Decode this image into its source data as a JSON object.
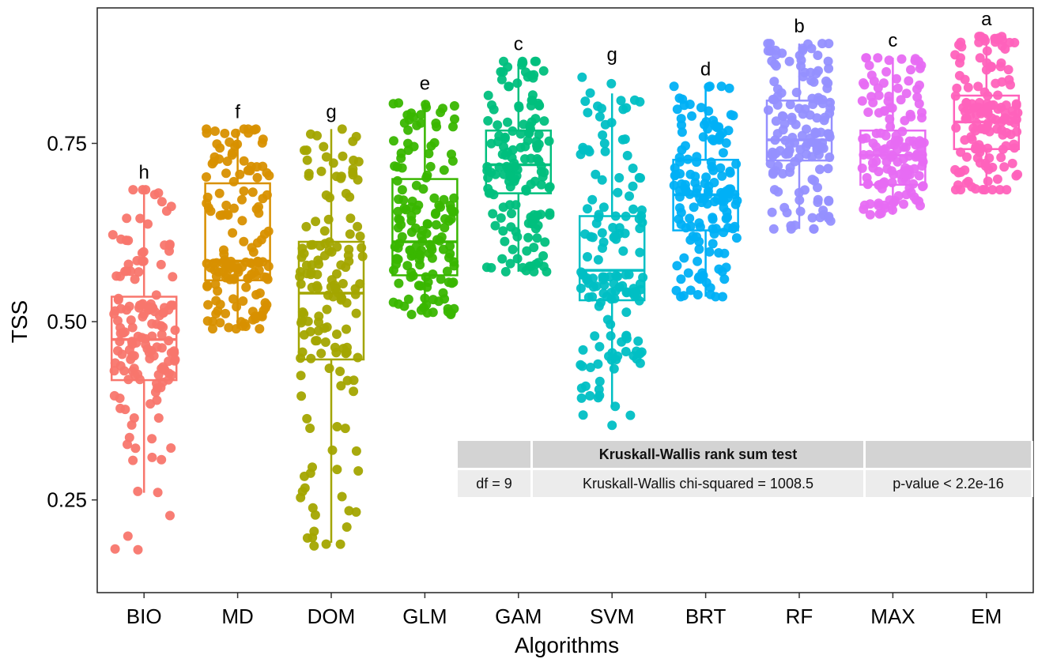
{
  "chart_data": {
    "type": "boxplot",
    "xlabel": "Algorithms",
    "ylabel": "TSS",
    "ylim": [
      0.12,
      0.94
    ],
    "yticks": [
      "0.25",
      "0.50",
      "0.75"
    ],
    "grid": false,
    "points_per_group": 150,
    "categories": [
      "BIO",
      "MD",
      "DOM",
      "GLM",
      "GAM",
      "SVM",
      "BRT",
      "RF",
      "MAX",
      "EM"
    ],
    "groups": [
      {
        "name": "BIO",
        "color": "#F8766D",
        "letter": "h",
        "min": 0.15,
        "q1": 0.418,
        "median": 0.475,
        "q3": 0.535,
        "max": 0.685,
        "whisker_low": 0.26,
        "whisker_high": 0.685
      },
      {
        "name": "MD",
        "color": "#D89000",
        "letter": "f",
        "min": 0.49,
        "q1": 0.558,
        "median": 0.585,
        "q3": 0.694,
        "max": 0.77,
        "whisker_low": 0.49,
        "whisker_high": 0.77
      },
      {
        "name": "DOM",
        "color": "#A3A500",
        "letter": "g",
        "min": 0.185,
        "q1": 0.447,
        "median": 0.54,
        "q3": 0.612,
        "max": 0.77,
        "whisker_low": 0.19,
        "whisker_high": 0.77
      },
      {
        "name": "GLM",
        "color": "#39B600",
        "letter": "e",
        "min": 0.51,
        "q1": 0.565,
        "median": 0.612,
        "q3": 0.7,
        "max": 0.81,
        "whisker_low": 0.51,
        "whisker_high": 0.81
      },
      {
        "name": "GAM",
        "color": "#00BF7D",
        "letter": "c",
        "min": 0.57,
        "q1": 0.68,
        "median": 0.72,
        "q3": 0.768,
        "max": 0.865,
        "whisker_low": 0.57,
        "whisker_high": 0.865
      },
      {
        "name": "SVM",
        "color": "#00BFC4",
        "letter": "g",
        "min": 0.35,
        "q1": 0.53,
        "median": 0.572,
        "q3": 0.648,
        "max": 0.85,
        "whisker_low": 0.38,
        "whisker_high": 0.82
      },
      {
        "name": "BRT",
        "color": "#00B0F6",
        "letter": "d",
        "min": 0.535,
        "q1": 0.628,
        "median": 0.678,
        "q3": 0.727,
        "max": 0.83,
        "whisker_low": 0.535,
        "whisker_high": 0.83
      },
      {
        "name": "RF",
        "color": "#9590FF",
        "letter": "b",
        "min": 0.63,
        "q1": 0.726,
        "median": 0.755,
        "q3": 0.81,
        "max": 0.89,
        "whisker_low": 0.63,
        "whisker_high": 0.89
      },
      {
        "name": "MAX",
        "color": "#E76BF3",
        "letter": "c",
        "min": 0.65,
        "q1": 0.692,
        "median": 0.733,
        "q3": 0.768,
        "max": 0.87,
        "whisker_low": 0.65,
        "whisker_high": 0.87
      },
      {
        "name": "EM",
        "color": "#FF62BC",
        "letter": "a",
        "min": 0.685,
        "q1": 0.742,
        "median": 0.78,
        "q3": 0.817,
        "max": 0.9,
        "whisker_low": 0.685,
        "whisker_high": 0.9
      }
    ]
  },
  "stats_table": {
    "title": "Kruskall-Wallis rank sum test",
    "df": "df = 9",
    "statistic": "Kruskall-Wallis chi-squared = 1008.5",
    "p_value": "p-value < 2.2e-16"
  }
}
